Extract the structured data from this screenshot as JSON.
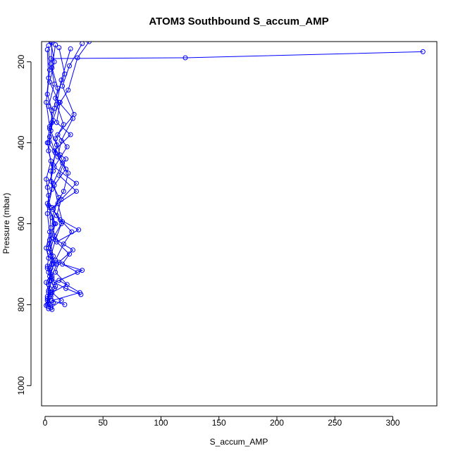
{
  "chart_data": {
    "type": "line",
    "title": "ATOM3 Southbound S_accum_AMP",
    "xlabel": "S_accum_AMP",
    "ylabel": "Pressure (mbar)",
    "xlim": [
      -3,
      338
    ],
    "ylim": [
      1050,
      150
    ],
    "y_reversed": true,
    "grid": false,
    "legend": "none",
    "x_ticks": [
      0,
      50,
      100,
      150,
      200,
      250,
      300
    ],
    "y_ticks": [
      200,
      400,
      600,
      800,
      1000
    ],
    "series_color": "#0000ff",
    "marker": "open-circle",
    "profiles": [
      {
        "x": [
          326,
          121,
          5
        ],
        "y": [
          175,
          190,
          192
        ]
      },
      {
        "x": [
          5,
          8,
          4,
          12,
          6,
          3,
          15,
          7,
          2,
          9,
          4,
          6,
          3,
          5,
          8,
          2,
          4,
          3
        ],
        "y": [
          150,
          200,
          250,
          300,
          350,
          400,
          450,
          500,
          550,
          600,
          650,
          700,
          720,
          740,
          760,
          780,
          800,
          810
        ]
      },
      {
        "x": [
          38,
          28,
          20,
          13,
          10,
          22,
          8,
          18,
          12,
          27,
          6,
          14,
          9,
          5,
          7,
          4,
          3,
          2
        ],
        "y": [
          150,
          190,
          270,
          300,
          350,
          380,
          420,
          440,
          480,
          520,
          560,
          600,
          640,
          680,
          700,
          740,
          770,
          800
        ]
      },
      {
        "x": [
          32,
          21,
          15,
          25,
          11,
          19,
          8,
          27,
          14,
          10,
          23,
          16,
          9,
          28,
          12,
          30,
          6,
          17
        ],
        "y": [
          155,
          210,
          260,
          330,
          380,
          410,
          460,
          500,
          540,
          580,
          620,
          650,
          690,
          720,
          740,
          770,
          790,
          800
        ]
      },
      {
        "x": [
          3,
          4,
          2,
          6,
          5,
          3,
          7,
          2,
          4,
          5,
          3,
          6,
          2,
          4,
          3,
          5,
          2,
          3
        ],
        "y": [
          160,
          220,
          280,
          320,
          370,
          420,
          470,
          510,
          560,
          610,
          660,
          690,
          710,
          730,
          750,
          770,
          790,
          805
        ]
      },
      {
        "x": [
          12,
          17,
          9,
          24,
          14,
          11,
          20,
          16,
          7,
          13,
          29,
          10,
          21,
          15,
          32,
          8,
          18,
          31
        ],
        "y": [
          165,
          230,
          290,
          340,
          395,
          435,
          475,
          520,
          565,
          590,
          615,
          645,
          675,
          700,
          715,
          745,
          760,
          775
        ]
      },
      {
        "x": [
          2,
          3,
          1,
          4,
          2,
          5,
          1,
          3,
          2,
          4,
          1,
          3,
          2,
          5,
          1,
          3,
          2,
          1
        ],
        "y": [
          170,
          240,
          300,
          360,
          400,
          445,
          490,
          530,
          575,
          620,
          660,
          685,
          705,
          725,
          745,
          765,
          785,
          802
        ]
      },
      {
        "x": [
          9,
          6,
          11,
          8,
          4,
          10,
          7,
          5,
          12,
          6,
          8,
          4,
          10,
          6,
          9,
          5,
          7,
          6
        ],
        "y": [
          158,
          215,
          265,
          315,
          365,
          405,
          455,
          495,
          535,
          585,
          630,
          670,
          700,
          730,
          755,
          775,
          795,
          812
        ]
      },
      {
        "x": [
          22,
          14,
          10,
          16,
          9,
          13,
          18,
          8,
          11,
          15,
          7,
          24,
          12,
          9,
          19,
          6,
          14,
          5
        ],
        "y": [
          168,
          245,
          305,
          355,
          390,
          430,
          465,
          505,
          550,
          595,
          635,
          665,
          695,
          720,
          750,
          770,
          790,
          808
        ]
      },
      {
        "x": [
          6,
          5,
          8,
          3,
          7,
          4,
          9,
          5,
          6,
          3,
          8,
          4,
          7,
          5,
          6,
          4,
          5,
          3
        ],
        "y": [
          152,
          205,
          255,
          310,
          345,
          385,
          425,
          470,
          515,
          555,
          600,
          640,
          680,
          710,
          735,
          760,
          780,
          798
        ]
      }
    ]
  }
}
